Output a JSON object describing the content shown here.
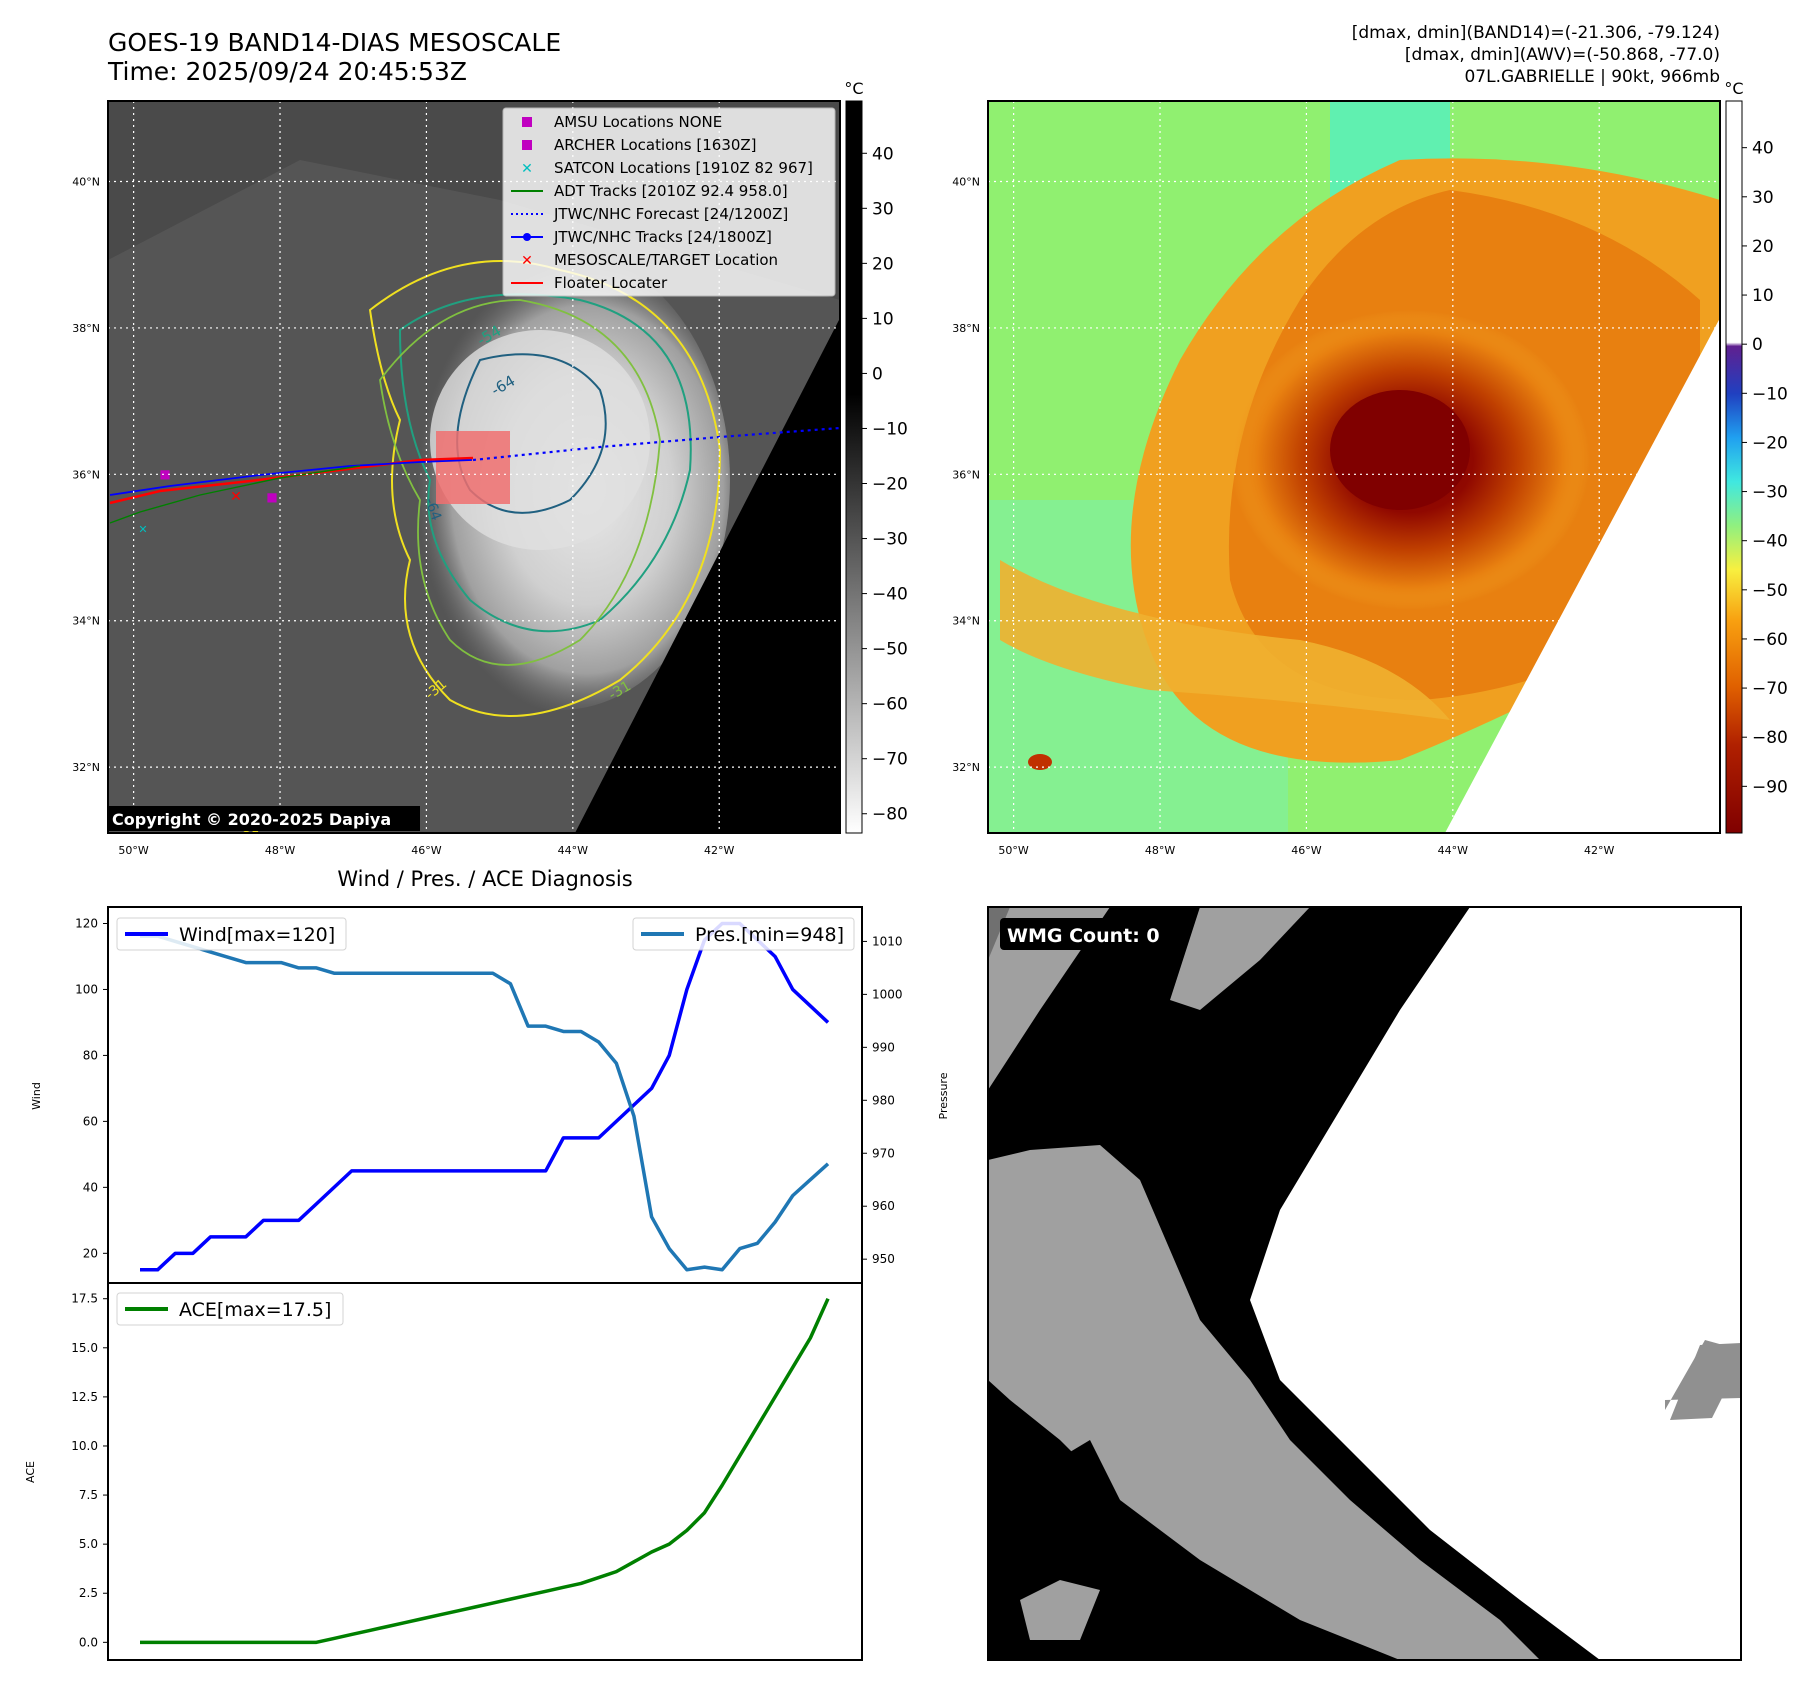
{
  "header": {
    "title_line1": "GOES-19 BAND14-DIAS MESOSCALE",
    "title_line2": "Time: 2025/09/24 20:45:53Z",
    "stats_line1": "[dmax, dmin](BAND14)=(-21.306, -79.124)",
    "stats_line2": "[dmax, dmin](AWV)=(-50.868, -77.0)",
    "stats_line3": "07L.GABRIELLE | 90kt, 966mb"
  },
  "map": {
    "lat_labels": [
      "40°N",
      "38°N",
      "36°N",
      "34°N",
      "32°N"
    ],
    "lon_labels": [
      "50°W",
      "48°W",
      "46°W",
      "44°W",
      "42°W"
    ],
    "lat_values": [
      40,
      38,
      36,
      34,
      32
    ],
    "lon_values": [
      -50,
      -48,
      -46,
      -44,
      -42
    ],
    "lat_range": [
      31.1,
      41.1
    ],
    "lon_range": [
      -50.35,
      -40.35
    ],
    "copyright": "Copyright © 2020-2025 Dapiya",
    "contour_labels": [
      "-54",
      "-64",
      "-64",
      "-31",
      "-31",
      "-31"
    ],
    "legend": [
      {
        "label": "AMSU Locations NONE",
        "color": "#c000c0",
        "marker": "square"
      },
      {
        "label": "ARCHER Locations [1630Z]",
        "color": "#c000c0",
        "marker": "square"
      },
      {
        "label": "SATCON Locations [1910Z 82 967]",
        "color": "#00bfbf",
        "marker": "x"
      },
      {
        "label": "ADT Tracks [2010Z 92.4 958.0]",
        "color": "#008000",
        "marker": "line"
      },
      {
        "label": "JTWC/NHC Forecast [24/1200Z]",
        "color": "#0000ff",
        "marker": "dotted"
      },
      {
        "label": "JTWC/NHC Tracks [24/1800Z]",
        "color": "#0000ff",
        "marker": "line-dot"
      },
      {
        "label": "MESOSCALE/TARGET Location",
        "color": "#ff0000",
        "marker": "x"
      },
      {
        "label": "Floater Locater",
        "color": "#ff0000",
        "marker": "line"
      }
    ]
  },
  "colorbar_gray": {
    "unit": "°C",
    "ticks": [
      "40",
      "30",
      "20",
      "10",
      "0",
      "−10",
      "−20",
      "−30",
      "−40",
      "−50",
      "−60",
      "−70",
      "−80"
    ],
    "tick_values": [
      40,
      30,
      20,
      10,
      0,
      -10,
      -20,
      -30,
      -40,
      -50,
      -60,
      -70,
      -80
    ],
    "range": [
      -83.5,
      49.5
    ]
  },
  "colorbar_wv": {
    "unit": "°C",
    "ticks": [
      "40",
      "30",
      "20",
      "10",
      "0",
      "−10",
      "−20",
      "−30",
      "−40",
      "−50",
      "−60",
      "−70",
      "−80",
      "−90"
    ],
    "tick_values": [
      40,
      30,
      20,
      10,
      0,
      -10,
      -20,
      -30,
      -40,
      -50,
      -60,
      -70,
      -80,
      -90
    ],
    "range": [
      -99.5,
      49.5
    ]
  },
  "wmg": {
    "label": "WMG Count: 0"
  },
  "chart_data": [
    {
      "type": "line",
      "title": "Wind / Pres. / ACE Diagnosis",
      "xlabel": "",
      "ylabel": "Wind",
      "ylabel_right": "Pressure",
      "ylim": [
        11,
        125
      ],
      "ylim_right": [
        945.5,
        1016.5
      ],
      "yticks": [
        20,
        40,
        60,
        80,
        100,
        120
      ],
      "yticks_right": [
        950,
        960,
        970,
        980,
        990,
        1000,
        1010
      ],
      "series": [
        {
          "name": "Wind[max=120]",
          "color": "#0000ff",
          "axis": "left",
          "values": [
            15,
            15,
            20,
            20,
            25,
            25,
            25,
            30,
            30,
            30,
            35,
            40,
            45,
            45,
            45,
            45,
            45,
            45,
            45,
            45,
            45,
            45,
            45,
            45,
            55,
            55,
            55,
            60,
            65,
            70,
            80,
            100,
            115,
            120,
            120,
            115,
            110,
            100,
            95,
            90
          ]
        },
        {
          "name": "Pres.[min=948]",
          "color": "#1f77b4",
          "axis": "right",
          "values": [
            1011,
            1011,
            1010,
            1009,
            1008,
            1007,
            1006,
            1006,
            1006,
            1005,
            1005,
            1004,
            1004,
            1004,
            1004,
            1004,
            1004,
            1004,
            1004,
            1004,
            1004,
            1002,
            994,
            994,
            993,
            993,
            991,
            987,
            977,
            958,
            952,
            948,
            948.5,
            948,
            952,
            953,
            957,
            962,
            965,
            968
          ]
        }
      ]
    },
    {
      "type": "line",
      "title": "",
      "xlabel": "",
      "ylabel": "ACE",
      "ylim": [
        -0.9,
        18.3
      ],
      "yticks": [
        "0.0",
        "2.5",
        "5.0",
        "7.5",
        "10.0",
        "12.5",
        "15.0",
        "17.5"
      ],
      "ytick_values": [
        0,
        2.5,
        5,
        7.5,
        10,
        12.5,
        15,
        17.5
      ],
      "series": [
        {
          "name": "ACE[max=17.5]",
          "color": "#008000",
          "values": [
            0,
            0,
            0,
            0,
            0,
            0,
            0,
            0,
            0,
            0,
            0,
            0.2,
            0.4,
            0.6,
            0.8,
            1.0,
            1.2,
            1.4,
            1.6,
            1.8,
            2.0,
            2.2,
            2.4,
            2.6,
            2.8,
            3.0,
            3.3,
            3.6,
            4.1,
            4.6,
            5.0,
            5.7,
            6.6,
            8.0,
            9.5,
            11.0,
            12.5,
            14.0,
            15.5,
            17.5
          ]
        }
      ]
    }
  ]
}
